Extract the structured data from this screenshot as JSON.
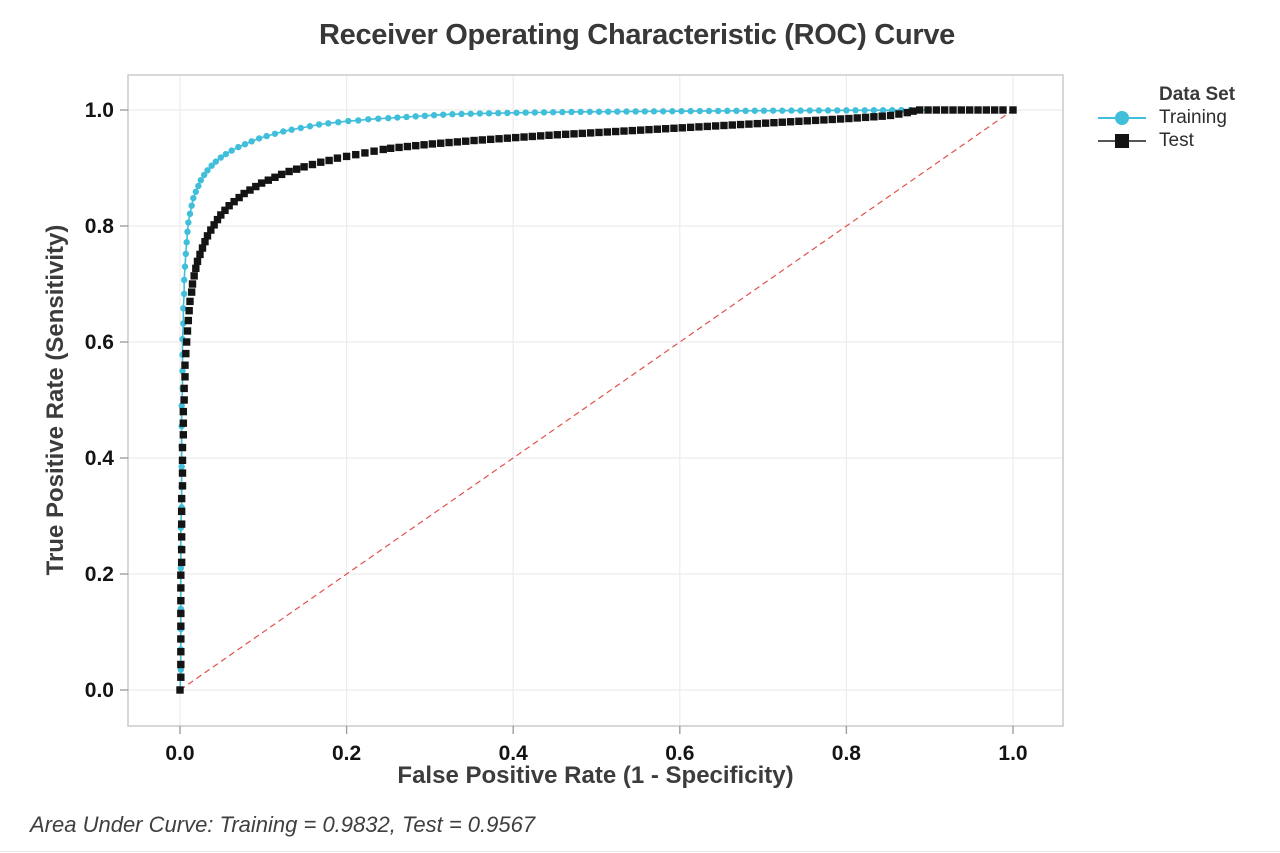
{
  "chart_data": {
    "type": "line",
    "title": "Receiver Operating Characteristic (ROC) Curve",
    "xlabel": "False Positive Rate (1 - Specificity)",
    "ylabel": "True Positive Rate (Sensitivity)",
    "xlim": [
      0.0,
      1.0
    ],
    "ylim": [
      0.0,
      1.0
    ],
    "xticks": [
      "0.0",
      "0.2",
      "0.4",
      "0.6",
      "0.8",
      "1.0"
    ],
    "yticks": [
      "0.0",
      "0.2",
      "0.4",
      "0.6",
      "0.8",
      "1.0"
    ],
    "grid": true,
    "grid_color": "#ECECEC",
    "frame_color": "#C6C6C6",
    "tick_color": "#9E9E9E",
    "legend": {
      "title": "Data Set",
      "position": "right"
    },
    "reference_line": {
      "name": "chance-diagonal",
      "from": [
        0,
        0
      ],
      "to": [
        1,
        1
      ],
      "style": "dashed",
      "color": "#E0524B"
    },
    "footnote": "Area Under Curve: Training = 0.9832, Test = 0.9567",
    "series": [
      {
        "name": "Training",
        "marker": "circle",
        "color": "#41BFDA",
        "line_color": "#41BFDA",
        "auc": 0.9832,
        "points": [
          [
            0.0,
            0.0
          ],
          [
            0.001,
            0.035
          ],
          [
            0.001,
            0.07
          ],
          [
            0.001,
            0.105
          ],
          [
            0.001,
            0.14
          ],
          [
            0.001,
            0.175
          ],
          [
            0.001,
            0.21
          ],
          [
            0.001,
            0.245
          ],
          [
            0.001,
            0.28
          ],
          [
            0.002,
            0.315
          ],
          [
            0.002,
            0.35
          ],
          [
            0.002,
            0.385
          ],
          [
            0.002,
            0.42
          ],
          [
            0.002,
            0.455
          ],
          [
            0.002,
            0.49
          ],
          [
            0.003,
            0.52
          ],
          [
            0.003,
            0.55
          ],
          [
            0.003,
            0.578
          ],
          [
            0.003,
            0.605
          ],
          [
            0.004,
            0.632
          ],
          [
            0.004,
            0.658
          ],
          [
            0.005,
            0.683
          ],
          [
            0.005,
            0.707
          ],
          [
            0.006,
            0.73
          ],
          [
            0.007,
            0.752
          ],
          [
            0.008,
            0.772
          ],
          [
            0.009,
            0.79
          ],
          [
            0.01,
            0.806
          ],
          [
            0.012,
            0.821
          ],
          [
            0.014,
            0.835
          ],
          [
            0.016,
            0.848
          ],
          [
            0.019,
            0.859
          ],
          [
            0.022,
            0.869
          ],
          [
            0.025,
            0.879
          ],
          [
            0.029,
            0.888
          ],
          [
            0.033,
            0.896
          ],
          [
            0.038,
            0.904
          ],
          [
            0.043,
            0.911
          ],
          [
            0.049,
            0.918
          ],
          [
            0.055,
            0.924
          ],
          [
            0.062,
            0.93
          ],
          [
            0.07,
            0.936
          ],
          [
            0.078,
            0.941
          ],
          [
            0.086,
            0.946
          ],
          [
            0.095,
            0.951
          ],
          [
            0.104,
            0.955
          ],
          [
            0.114,
            0.959
          ],
          [
            0.124,
            0.963
          ],
          [
            0.134,
            0.966
          ],
          [
            0.145,
            0.969
          ],
          [
            0.156,
            0.972
          ],
          [
            0.167,
            0.975
          ],
          [
            0.178,
            0.977
          ],
          [
            0.19,
            0.979
          ],
          [
            0.202,
            0.981
          ],
          [
            0.214,
            0.982
          ],
          [
            0.226,
            0.984
          ],
          [
            0.238,
            0.985
          ],
          [
            0.25,
            0.986
          ],
          [
            0.261,
            0.987
          ],
          [
            0.272,
            0.988
          ],
          [
            0.283,
            0.989
          ],
          [
            0.294,
            0.99
          ],
          [
            0.305,
            0.991
          ],
          [
            0.316,
            0.992
          ],
          [
            0.327,
            0.9927
          ],
          [
            0.338,
            0.9931
          ],
          [
            0.349,
            0.9935
          ],
          [
            0.36,
            0.9939
          ],
          [
            0.371,
            0.9943
          ],
          [
            0.382,
            0.9946
          ],
          [
            0.393,
            0.9949
          ],
          [
            0.404,
            0.9952
          ],
          [
            0.415,
            0.9955
          ],
          [
            0.426,
            0.9957
          ],
          [
            0.437,
            0.9959
          ],
          [
            0.448,
            0.9962
          ],
          [
            0.459,
            0.9964
          ],
          [
            0.47,
            0.9966
          ],
          [
            0.481,
            0.9968
          ],
          [
            0.492,
            0.9969
          ],
          [
            0.503,
            0.997
          ],
          [
            0.514,
            0.9971
          ],
          [
            0.525,
            0.9972
          ],
          [
            0.536,
            0.9974
          ],
          [
            0.547,
            0.9975
          ],
          [
            0.558,
            0.9976
          ],
          [
            0.569,
            0.9977
          ],
          [
            0.58,
            0.9978
          ],
          [
            0.591,
            0.9979
          ],
          [
            0.602,
            0.998
          ],
          [
            0.613,
            0.9981
          ],
          [
            0.624,
            0.9982
          ],
          [
            0.635,
            0.9983
          ],
          [
            0.646,
            0.9984
          ],
          [
            0.657,
            0.9985
          ],
          [
            0.668,
            0.9986
          ],
          [
            0.679,
            0.9986
          ],
          [
            0.69,
            0.9987
          ],
          [
            0.701,
            0.9988
          ],
          [
            0.712,
            0.9989
          ],
          [
            0.723,
            0.9989
          ],
          [
            0.734,
            0.999
          ],
          [
            0.745,
            0.999
          ],
          [
            0.756,
            0.9991
          ],
          [
            0.767,
            0.9992
          ],
          [
            0.778,
            0.9992
          ],
          [
            0.789,
            0.9993
          ],
          [
            0.8,
            0.9994
          ],
          [
            0.811,
            0.9994
          ],
          [
            0.822,
            0.9995
          ],
          [
            0.833,
            0.9996
          ],
          [
            0.844,
            0.9996
          ],
          [
            0.855,
            0.9997
          ],
          [
            0.866,
            0.9998
          ],
          [
            0.877,
            0.9999
          ],
          [
            0.888,
            0.9999
          ],
          [
            0.899,
            1.0
          ]
        ]
      },
      {
        "name": "Test",
        "marker": "square",
        "color": "#141414",
        "line_color": "#555555",
        "auc": 0.9567,
        "points": [
          [
            0.0,
            0.0
          ],
          [
            0.001,
            0.022
          ],
          [
            0.001,
            0.044
          ],
          [
            0.001,
            0.066
          ],
          [
            0.001,
            0.088
          ],
          [
            0.001,
            0.11
          ],
          [
            0.001,
            0.132
          ],
          [
            0.001,
            0.154
          ],
          [
            0.001,
            0.176
          ],
          [
            0.001,
            0.198
          ],
          [
            0.002,
            0.22
          ],
          [
            0.002,
            0.242
          ],
          [
            0.002,
            0.264
          ],
          [
            0.002,
            0.286
          ],
          [
            0.002,
            0.308
          ],
          [
            0.002,
            0.33
          ],
          [
            0.003,
            0.352
          ],
          [
            0.003,
            0.374
          ],
          [
            0.003,
            0.396
          ],
          [
            0.003,
            0.418
          ],
          [
            0.004,
            0.44
          ],
          [
            0.004,
            0.46
          ],
          [
            0.004,
            0.48
          ],
          [
            0.005,
            0.5
          ],
          [
            0.005,
            0.52
          ],
          [
            0.006,
            0.54
          ],
          [
            0.006,
            0.56
          ],
          [
            0.007,
            0.58
          ],
          [
            0.008,
            0.6
          ],
          [
            0.009,
            0.619
          ],
          [
            0.01,
            0.637
          ],
          [
            0.011,
            0.654
          ],
          [
            0.012,
            0.67
          ],
          [
            0.014,
            0.686
          ],
          [
            0.015,
            0.7
          ],
          [
            0.017,
            0.714
          ],
          [
            0.019,
            0.727
          ],
          [
            0.021,
            0.739
          ],
          [
            0.024,
            0.751
          ],
          [
            0.027,
            0.762
          ],
          [
            0.03,
            0.773
          ],
          [
            0.033,
            0.783
          ],
          [
            0.037,
            0.793
          ],
          [
            0.041,
            0.802
          ],
          [
            0.045,
            0.811
          ],
          [
            0.049,
            0.819
          ],
          [
            0.054,
            0.827
          ],
          [
            0.059,
            0.835
          ],
          [
            0.065,
            0.842
          ],
          [
            0.071,
            0.849
          ],
          [
            0.077,
            0.856
          ],
          [
            0.084,
            0.862
          ],
          [
            0.091,
            0.868
          ],
          [
            0.098,
            0.874
          ],
          [
            0.106,
            0.879
          ],
          [
            0.114,
            0.884
          ],
          [
            0.122,
            0.889
          ],
          [
            0.131,
            0.894
          ],
          [
            0.14,
            0.898
          ],
          [
            0.149,
            0.902
          ],
          [
            0.159,
            0.906
          ],
          [
            0.169,
            0.91
          ],
          [
            0.179,
            0.913
          ],
          [
            0.189,
            0.917
          ],
          [
            0.2,
            0.92
          ],
          [
            0.211,
            0.923
          ],
          [
            0.222,
            0.926
          ],
          [
            0.233,
            0.929
          ],
          [
            0.244,
            0.932
          ],
          [
            0.253,
            0.934
          ],
          [
            0.263,
            0.9355
          ],
          [
            0.273,
            0.937
          ],
          [
            0.283,
            0.9385
          ],
          [
            0.293,
            0.94
          ],
          [
            0.303,
            0.9415
          ],
          [
            0.313,
            0.9427
          ],
          [
            0.323,
            0.9439
          ],
          [
            0.333,
            0.945
          ],
          [
            0.343,
            0.9462
          ],
          [
            0.353,
            0.9474
          ],
          [
            0.363,
            0.9484
          ],
          [
            0.373,
            0.9494
          ],
          [
            0.383,
            0.9504
          ],
          [
            0.393,
            0.9514
          ],
          [
            0.403,
            0.9524
          ],
          [
            0.413,
            0.9534
          ],
          [
            0.423,
            0.9544
          ],
          [
            0.433,
            0.9554
          ],
          [
            0.443,
            0.9564
          ],
          [
            0.453,
            0.9573
          ],
          [
            0.463,
            0.9581
          ],
          [
            0.473,
            0.9589
          ],
          [
            0.483,
            0.9597
          ],
          [
            0.493,
            0.9605
          ],
          [
            0.503,
            0.9613
          ],
          [
            0.513,
            0.9621
          ],
          [
            0.523,
            0.9629
          ],
          [
            0.533,
            0.9637
          ],
          [
            0.543,
            0.9645
          ],
          [
            0.553,
            0.9653
          ],
          [
            0.563,
            0.9661
          ],
          [
            0.573,
            0.9669
          ],
          [
            0.583,
            0.9677
          ],
          [
            0.593,
            0.9685
          ],
          [
            0.603,
            0.9693
          ],
          [
            0.613,
            0.9701
          ],
          [
            0.623,
            0.9709
          ],
          [
            0.633,
            0.9717
          ],
          [
            0.643,
            0.9725
          ],
          [
            0.653,
            0.9733
          ],
          [
            0.663,
            0.9741
          ],
          [
            0.673,
            0.9749
          ],
          [
            0.683,
            0.9757
          ],
          [
            0.693,
            0.9765
          ],
          [
            0.703,
            0.9773
          ],
          [
            0.713,
            0.9781
          ],
          [
            0.723,
            0.9789
          ],
          [
            0.733,
            0.9797
          ],
          [
            0.743,
            0.9805
          ],
          [
            0.753,
            0.9813
          ],
          [
            0.763,
            0.9821
          ],
          [
            0.773,
            0.9829
          ],
          [
            0.783,
            0.9837
          ],
          [
            0.793,
            0.9845
          ],
          [
            0.803,
            0.9853
          ],
          [
            0.813,
            0.9863
          ],
          [
            0.823,
            0.9873
          ],
          [
            0.833,
            0.9883
          ],
          [
            0.843,
            0.9893
          ],
          [
            0.853,
            0.9906
          ],
          [
            0.863,
            0.993
          ],
          [
            0.873,
            0.9955
          ],
          [
            0.88,
            0.998
          ],
          [
            0.888,
            1.0
          ],
          [
            0.898,
            1.0
          ],
          [
            0.908,
            1.0
          ],
          [
            0.918,
            1.0
          ],
          [
            0.928,
            1.0
          ],
          [
            0.938,
            1.0
          ],
          [
            0.948,
            1.0
          ],
          [
            0.958,
            1.0
          ],
          [
            0.968,
            1.0
          ],
          [
            0.978,
            1.0
          ],
          [
            0.988,
            1.0
          ],
          [
            1.0,
            1.0
          ]
        ]
      }
    ]
  }
}
